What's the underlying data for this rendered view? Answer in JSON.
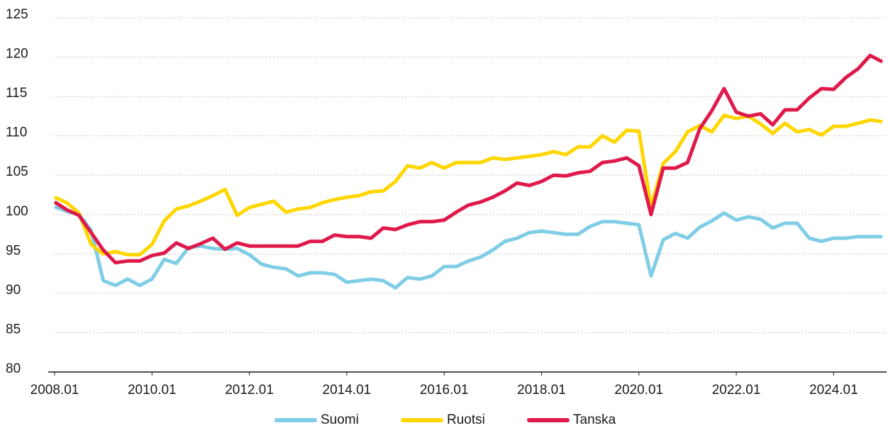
{
  "chart_data": {
    "type": "line",
    "x": [
      2008,
      2008.25,
      2008.5,
      2008.75,
      2009,
      2009.25,
      2009.5,
      2009.75,
      2010,
      2010.25,
      2010.5,
      2010.75,
      2011,
      2011.25,
      2011.5,
      2011.75,
      2012,
      2012.25,
      2012.5,
      2012.75,
      2013,
      2013.25,
      2013.5,
      2013.75,
      2014,
      2014.25,
      2014.5,
      2014.75,
      2015,
      2015.25,
      2015.5,
      2015.75,
      2016,
      2016.25,
      2016.5,
      2016.75,
      2017,
      2017.25,
      2017.5,
      2017.75,
      2018,
      2018.25,
      2018.5,
      2018.75,
      2019,
      2019.25,
      2019.5,
      2019.75,
      2020,
      2020.25,
      2020.5,
      2020.75,
      2021,
      2021.25,
      2021.5,
      2021.75,
      2022,
      2022.25,
      2022.5,
      2022.75,
      2023,
      2023.25,
      2023.5,
      2023.75,
      2024,
      2024.25,
      2024.5,
      2024.75,
      2025
    ],
    "series": [
      {
        "name": "Suomi",
        "color": "#7fcde6",
        "values": [
          101.0,
          100.4,
          100.0,
          98.0,
          91.6,
          91.0,
          91.8,
          91.0,
          91.8,
          94.3,
          93.8,
          95.8,
          96.0,
          95.7,
          95.6,
          95.7,
          94.9,
          93.7,
          93.3,
          93.1,
          92.2,
          92.6,
          92.6,
          92.4,
          91.4,
          91.6,
          91.8,
          91.6,
          90.7,
          92.0,
          91.8,
          92.2,
          93.4,
          93.4,
          94.1,
          94.6,
          95.5,
          96.6,
          97.0,
          97.7,
          97.9,
          97.7,
          97.5,
          97.5,
          98.5,
          99.1,
          99.1,
          98.9,
          98.7,
          92.2,
          96.8,
          97.6,
          97.0,
          98.4,
          99.2,
          100.2,
          99.3,
          99.7,
          99.4,
          98.3,
          98.9,
          98.9,
          97.0,
          96.6,
          97.0,
          97.0,
          97.2,
          97.2,
          97.2
        ]
      },
      {
        "name": "Ruotsi",
        "color": "#ffd600",
        "values": [
          102.2,
          101.5,
          100.2,
          96.2,
          95.0,
          95.3,
          94.9,
          94.9,
          96.2,
          99.2,
          100.7,
          101.1,
          101.7,
          102.4,
          103.2,
          99.9,
          100.9,
          101.3,
          101.7,
          100.3,
          100.7,
          100.9,
          101.5,
          101.9,
          102.2,
          102.4,
          102.9,
          103.0,
          104.2,
          106.2,
          105.9,
          106.6,
          105.9,
          106.6,
          106.6,
          106.6,
          107.2,
          107.0,
          107.2,
          107.4,
          107.6,
          108.0,
          107.6,
          108.6,
          108.6,
          110.0,
          109.2,
          110.7,
          110.6,
          101.0,
          106.5,
          108.0,
          110.5,
          111.3,
          110.5,
          112.6,
          112.2,
          112.5,
          111.5,
          110.3,
          111.6,
          110.5,
          110.8,
          110.1,
          111.2,
          111.2,
          111.6,
          112.0,
          111.8
        ]
      },
      {
        "name": "Tanska",
        "color": "#e0194b",
        "values": [
          101.6,
          100.6,
          99.9,
          97.7,
          95.5,
          93.9,
          94.1,
          94.1,
          94.8,
          95.1,
          96.4,
          95.7,
          96.3,
          97.0,
          95.6,
          96.4,
          96.0,
          96.0,
          96.0,
          96.0,
          96.0,
          96.6,
          96.6,
          97.4,
          97.2,
          97.2,
          97.0,
          98.3,
          98.1,
          98.7,
          99.1,
          99.1,
          99.3,
          100.3,
          101.2,
          101.6,
          102.2,
          103.0,
          104.0,
          103.7,
          104.2,
          105.0,
          104.9,
          105.3,
          105.5,
          106.6,
          106.8,
          107.2,
          106.2,
          100.0,
          105.9,
          105.9,
          106.6,
          110.9,
          113.2,
          116.0,
          113.0,
          112.5,
          112.8,
          111.4,
          113.3,
          113.3,
          114.8,
          116.0,
          115.9,
          117.4,
          118.5,
          120.2,
          119.4
        ]
      }
    ],
    "xlim": [
      2008,
      2025
    ],
    "xticks": [
      {
        "value": 2008,
        "label": "2008.01"
      },
      {
        "value": 2010,
        "label": "2010.01"
      },
      {
        "value": 2012,
        "label": "2012.01"
      },
      {
        "value": 2014,
        "label": "2014.01"
      },
      {
        "value": 2016,
        "label": "2016.01"
      },
      {
        "value": 2018,
        "label": "2018.01"
      },
      {
        "value": 2020,
        "label": "2020.01"
      },
      {
        "value": 2022,
        "label": "2022.01"
      },
      {
        "value": 2024,
        "label": "2024.01"
      }
    ],
    "ylim": [
      80,
      125
    ],
    "yticks": [
      80,
      85,
      90,
      95,
      100,
      105,
      110,
      115,
      120,
      125
    ],
    "grid": true,
    "legend": "bottom"
  }
}
